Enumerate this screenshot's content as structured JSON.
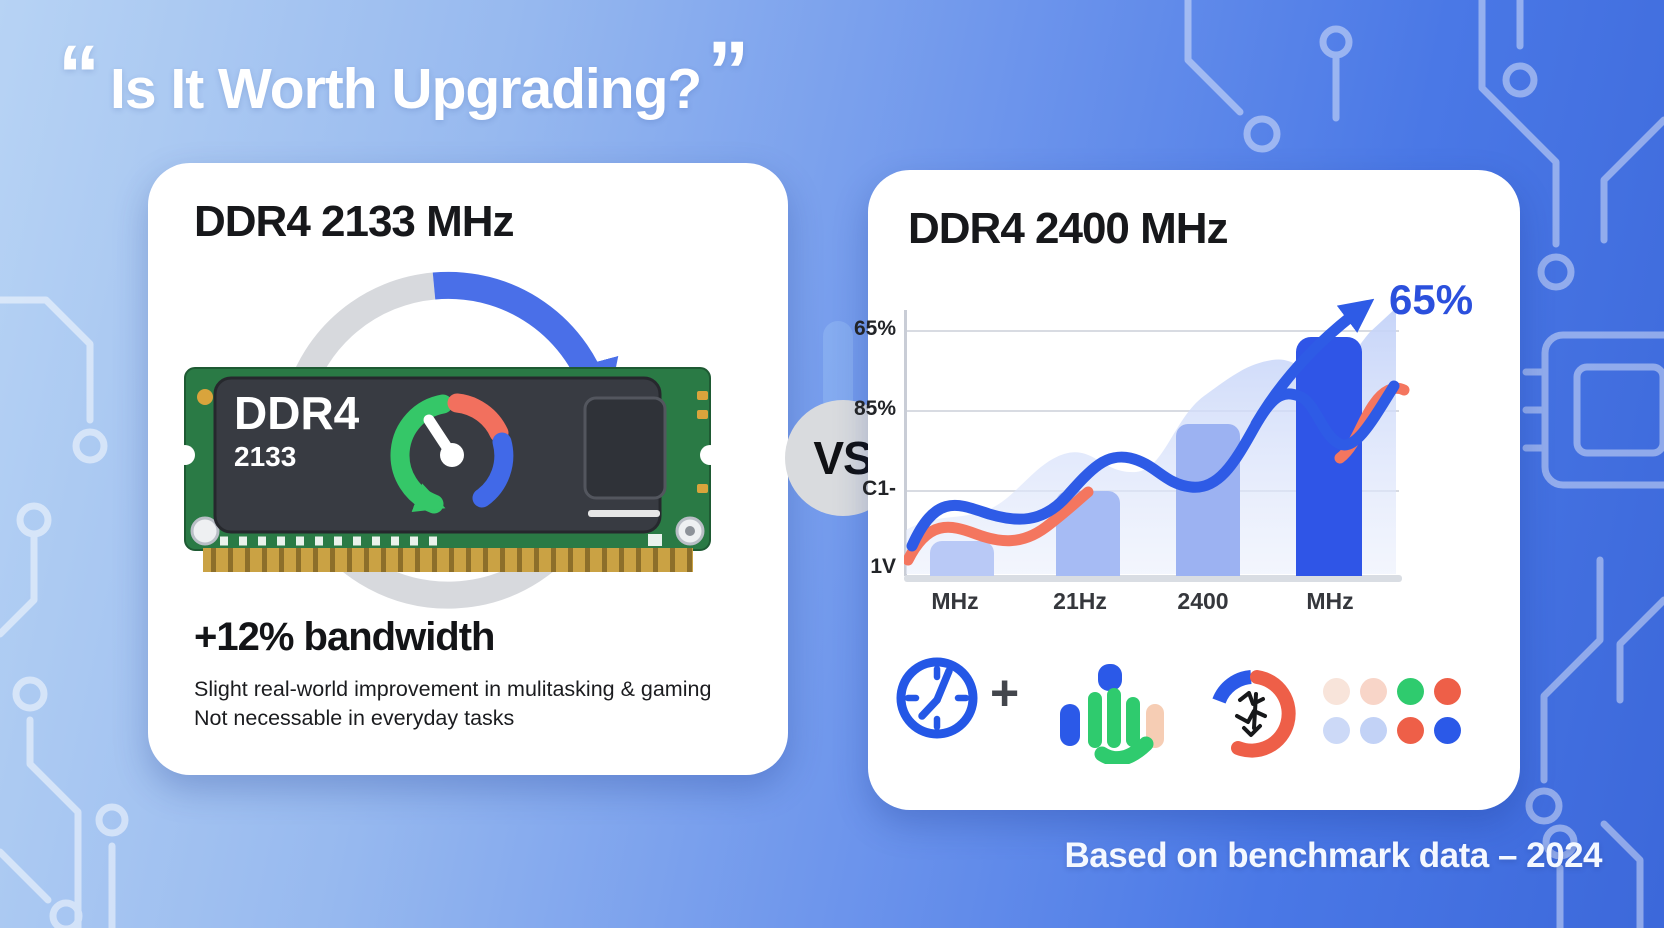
{
  "title": {
    "open_quote": "“",
    "text": "Is It Worth Upgrading?",
    "close_quote": "”"
  },
  "left_card": {
    "heading": "DDR4 2133 MHz",
    "ram_label_line1": "DDR4",
    "ram_label_line2": "2133",
    "stat_heading": "+12% bandwidth",
    "note_line1": "Slight real-world improvement in mulitasking & gaming",
    "note_line2": "Not necessable in everyday tasks"
  },
  "divider": {
    "vs_label": "VS"
  },
  "right_card": {
    "heading": "DDR4 2400 MHz",
    "chart": {
      "callout": "65%",
      "y_axis_labels": [
        "65%",
        "85%",
        "C1-",
        "1V"
      ],
      "x_axis_labels": [
        "MHz",
        "21Hz",
        "2400",
        "MHz"
      ]
    },
    "icon_row": {
      "plus_sign": "+",
      "icons": [
        "clock-icon",
        "plus-sign",
        "activity-bars-icon",
        "ring-gauge-icon",
        "dots-grid"
      ],
      "dot_colors_row1": [
        "#f8e4da",
        "#f8d5c8",
        "#2fcb6e",
        "#ee5f48"
      ],
      "dot_colors_row2": [
        "#ccd9f7",
        "#c2d2f6",
        "#ee5f48",
        "#2b59e8"
      ]
    }
  },
  "footer": {
    "text": "Based on benchmark data – 2024"
  },
  "colors": {
    "accent_blue": "#2f55e7",
    "salmon": "#f4765f",
    "green": "#35c768",
    "light_bar_blue": "#b9c9f6",
    "background_left": "#b7d3f4",
    "background_right": "#3c68da"
  },
  "chart_data": {
    "type": "bar",
    "categories": [
      "MHz",
      "21Hz",
      "2400",
      "MHz"
    ],
    "values": [
      13,
      32,
      57,
      90
    ],
    "values_note": "relative bar heights, % of plot height (unlabeled in image)",
    "y_tick_labels": [
      "65%",
      "85%",
      "C1-",
      "1V"
    ],
    "x_tick_labels": [
      "MHz",
      "21Hz",
      "2400",
      "MHz"
    ],
    "annotation": {
      "text": "65%",
      "position": "top-right, pointed to by rising arrow"
    },
    "overlays": [
      "blue wavy trend line ending in upward arrow",
      "salmon partial trend line lower-left and over last bar",
      "light blue area silhouette behind bars"
    ],
    "title": "DDR4 2400 MHz",
    "grid": true,
    "legend": false
  }
}
